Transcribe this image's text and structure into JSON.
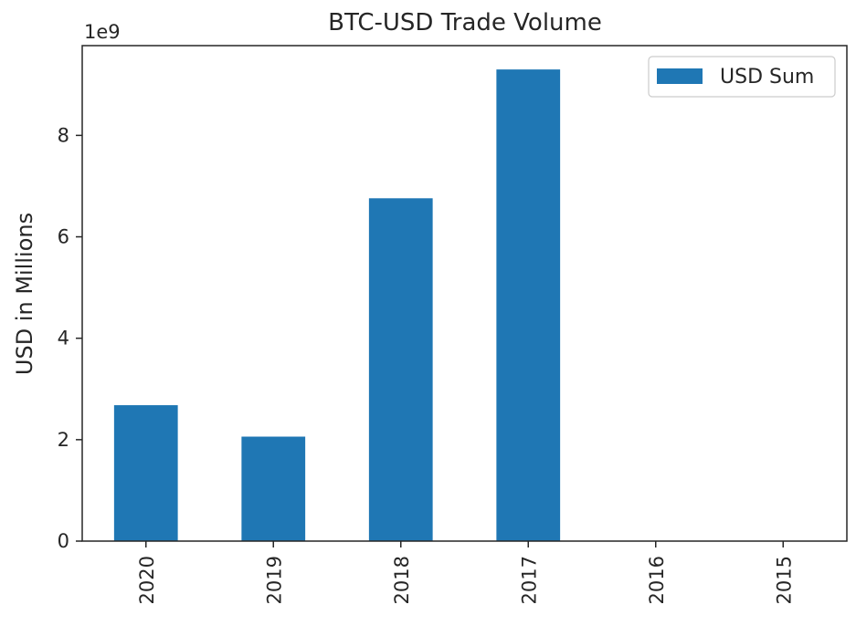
{
  "chart_data": {
    "type": "bar",
    "title": "BTC-USD Trade Volume",
    "xlabel": "",
    "ylabel": "USD in Millions",
    "y_offset_label": "1e9",
    "categories": [
      "2020",
      "2019",
      "2018",
      "2017",
      "2016",
      "2015"
    ],
    "series": [
      {
        "name": "USD Sum",
        "values": [
          2680000000,
          2060000000,
          6760000000,
          9300000000,
          0,
          0
        ],
        "color": "#1f77b4"
      }
    ],
    "ylim": [
      0,
      9770000000
    ],
    "y_ticks": [
      0,
      2000000000,
      4000000000,
      6000000000,
      8000000000
    ],
    "y_tick_labels": [
      "0",
      "2",
      "4",
      "6",
      "8"
    ],
    "x_tick_rotation": "vertical",
    "legend": "top-right",
    "grid": false
  }
}
